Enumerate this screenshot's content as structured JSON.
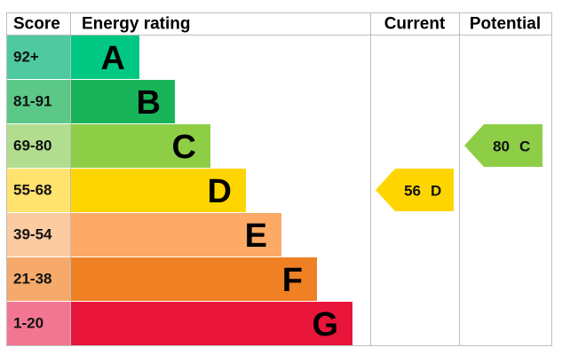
{
  "header": {
    "score": "Score",
    "rating": "Energy rating",
    "current": "Current",
    "potential": "Potential"
  },
  "bands": [
    {
      "score": "92+",
      "letter": "A",
      "color": "#00c781",
      "score_color": "#4fcaa0"
    },
    {
      "score": "81-91",
      "letter": "B",
      "color": "#19b459",
      "score_color": "#5bc887"
    },
    {
      "score": "69-80",
      "letter": "C",
      "color": "#8dce46",
      "score_color": "#b0de8e"
    },
    {
      "score": "55-68",
      "letter": "D",
      "color": "#ffd500",
      "score_color": "#ffe36e"
    },
    {
      "score": "39-54",
      "letter": "E",
      "color": "#fcaa65",
      "score_color": "#fdcba1"
    },
    {
      "score": "21-38",
      "letter": "F",
      "color": "#ef8023",
      "score_color": "#f5a96b"
    },
    {
      "score": "1-20",
      "letter": "G",
      "color": "#e9153b",
      "score_color": "#f27691"
    }
  ],
  "current": {
    "score": 56,
    "rating": "D"
  },
  "potential": {
    "score": 80,
    "rating": "C"
  }
}
